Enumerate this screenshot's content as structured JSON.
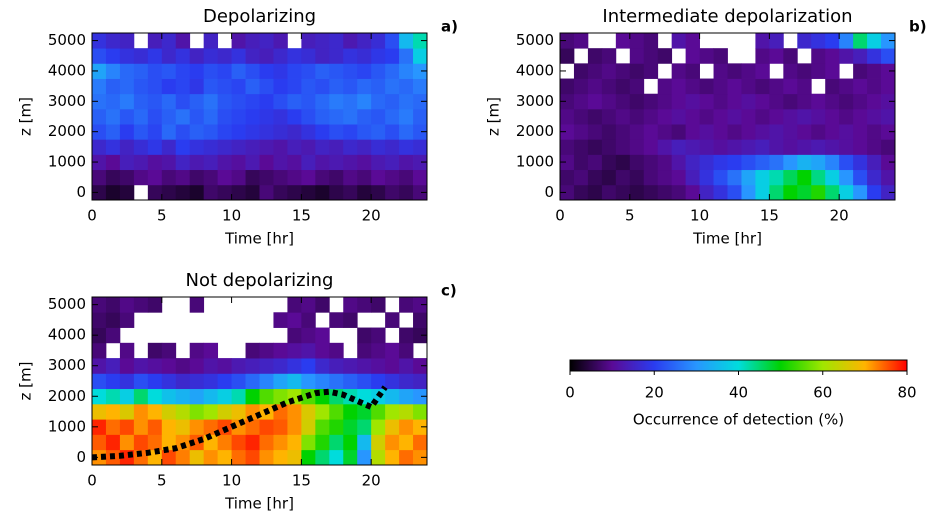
{
  "chart_data": [
    {
      "type": "heatmap",
      "title": "Depolarizing",
      "panel_label": "a)",
      "xlabel": "Time [hr]",
      "ylabel": "z [m]",
      "xlim": [
        0,
        24
      ],
      "ylim": [
        -250,
        5250
      ],
      "xticks": [
        0,
        5,
        10,
        15,
        20
      ],
      "yticks": [
        0,
        1000,
        2000,
        3000,
        4000,
        5000
      ],
      "x_bins": [
        0,
        1,
        2,
        3,
        4,
        5,
        6,
        7,
        8,
        9,
        10,
        11,
        12,
        13,
        14,
        15,
        16,
        17,
        18,
        19,
        20,
        21,
        22,
        23,
        24
      ],
      "y_bins": [
        -250,
        250,
        750,
        1250,
        1750,
        2250,
        2750,
        3250,
        3750,
        4250,
        4750,
        5250
      ],
      "z": [
        [
          5,
          3,
          4,
          null,
          6,
          5,
          4,
          3,
          7,
          6,
          5,
          4,
          8,
          6,
          5,
          4,
          3,
          5,
          6,
          4,
          5,
          7,
          6,
          8
        ],
        [
          8,
          6,
          7,
          9,
          10,
          8,
          9,
          7,
          8,
          10,
          9,
          6,
          7,
          8,
          9,
          10,
          8,
          7,
          9,
          8,
          10,
          9,
          8,
          10
        ],
        [
          12,
          10,
          14,
          13,
          11,
          12,
          15,
          13,
          14,
          12,
          11,
          13,
          10,
          12,
          11,
          14,
          12,
          13,
          12,
          11,
          13,
          14,
          12,
          13
        ],
        [
          16,
          18,
          15,
          17,
          19,
          16,
          20,
          18,
          17,
          16,
          15,
          14,
          13,
          12,
          14,
          13,
          15,
          14,
          16,
          15,
          17,
          16,
          18,
          17
        ],
        [
          22,
          24,
          20,
          23,
          21,
          25,
          22,
          24,
          23,
          21,
          20,
          19,
          18,
          17,
          16,
          18,
          20,
          22,
          21,
          23,
          24,
          22,
          25,
          23
        ],
        [
          24,
          26,
          23,
          25,
          22,
          24,
          26,
          23,
          25,
          22,
          21,
          20,
          19,
          18,
          20,
          22,
          24,
          25,
          26,
          24,
          23,
          25,
          27,
          24
        ],
        [
          26,
          25,
          27,
          24,
          23,
          25,
          22,
          24,
          26,
          23,
          22,
          21,
          20,
          22,
          24,
          23,
          25,
          27,
          26,
          28,
          25,
          24,
          26,
          25
        ],
        [
          27,
          24,
          25,
          23,
          22,
          20,
          21,
          19,
          23,
          22,
          21,
          24,
          22,
          20,
          21,
          23,
          22,
          24,
          23,
          25,
          24,
          26,
          25,
          27
        ],
        [
          32,
          28,
          25,
          24,
          22,
          23,
          21,
          20,
          22,
          21,
          24,
          22,
          20,
          19,
          21,
          22,
          24,
          23,
          22,
          21,
          23,
          25,
          28,
          30
        ],
        [
          22,
          20,
          18,
          17,
          19,
          16,
          18,
          15,
          17,
          16,
          18,
          15,
          14,
          16,
          18,
          17,
          15,
          16,
          18,
          17,
          19,
          20,
          26,
          38
        ],
        [
          18,
          16,
          15,
          null,
          14,
          16,
          12,
          null,
          15,
          null,
          12,
          14,
          15,
          13,
          null,
          14,
          15,
          16,
          13,
          15,
          17,
          22,
          35,
          42
        ]
      ]
    },
    {
      "type": "heatmap",
      "title": "Intermediate depolarization",
      "panel_label": "b)",
      "xlabel": "Time [hr]",
      "ylabel": "z [m]",
      "xlim": [
        0,
        24
      ],
      "ylim": [
        -250,
        5250
      ],
      "xticks": [
        0,
        5,
        10,
        15,
        20
      ],
      "yticks": [
        0,
        1000,
        2000,
        3000,
        4000,
        5000
      ],
      "x_bins": [
        0,
        1,
        2,
        3,
        4,
        5,
        6,
        7,
        8,
        9,
        10,
        11,
        12,
        13,
        14,
        15,
        16,
        17,
        18,
        19,
        20,
        21,
        22,
        23,
        24
      ],
      "y_bins": [
        -250,
        250,
        750,
        1250,
        1750,
        2250,
        2750,
        3250,
        3750,
        4250,
        4750,
        5250
      ],
      "z": [
        [
          8,
          6,
          5,
          7,
          6,
          5,
          6,
          7,
          8,
          10,
          15,
          18,
          22,
          30,
          38,
          45,
          50,
          48,
          52,
          45,
          38,
          30,
          20,
          15
        ],
        [
          7,
          8,
          6,
          5,
          7,
          6,
          8,
          9,
          10,
          14,
          18,
          22,
          26,
          32,
          38,
          42,
          46,
          50,
          44,
          38,
          30,
          22,
          16,
          12
        ],
        [
          9,
          7,
          8,
          6,
          5,
          7,
          8,
          9,
          12,
          15,
          17,
          19,
          20,
          22,
          24,
          26,
          30,
          34,
          32,
          28,
          22,
          18,
          14,
          10
        ],
        [
          8,
          7,
          6,
          7,
          8,
          9,
          10,
          12,
          14,
          13,
          12,
          11,
          12,
          13,
          14,
          12,
          11,
          12,
          13,
          12,
          11,
          10,
          9,
          8
        ],
        [
          10,
          9,
          8,
          7,
          8,
          9,
          10,
          9,
          8,
          10,
          11,
          10,
          9,
          10,
          11,
          12,
          11,
          10,
          9,
          10,
          11,
          10,
          9,
          10
        ],
        [
          9,
          8,
          7,
          8,
          9,
          8,
          9,
          10,
          11,
          10,
          9,
          10,
          11,
          10,
          9,
          10,
          11,
          12,
          11,
          10,
          9,
          10,
          11,
          12
        ],
        [
          8,
          9,
          10,
          9,
          8,
          7,
          8,
          9,
          10,
          11,
          10,
          9,
          10,
          11,
          10,
          9,
          8,
          9,
          10,
          9,
          8,
          9,
          10,
          11
        ],
        [
          7,
          8,
          9,
          8,
          7,
          8,
          null,
          9,
          10,
          9,
          8,
          9,
          10,
          9,
          8,
          9,
          10,
          9,
          null,
          8,
          9,
          10,
          9,
          10
        ],
        [
          null,
          7,
          8,
          9,
          8,
          7,
          8,
          null,
          9,
          8,
          null,
          9,
          8,
          9,
          10,
          null,
          9,
          8,
          9,
          10,
          null,
          8,
          9,
          10
        ],
        [
          6,
          null,
          7,
          8,
          null,
          9,
          8,
          7,
          null,
          10,
          9,
          8,
          null,
          null,
          9,
          10,
          8,
          null,
          9,
          10,
          12,
          14,
          18,
          22
        ],
        [
          8,
          9,
          null,
          null,
          10,
          9,
          8,
          null,
          12,
          10,
          null,
          null,
          null,
          null,
          12,
          14,
          null,
          16,
          18,
          20,
          28,
          45,
          38,
          30
        ]
      ]
    },
    {
      "type": "heatmap",
      "title": "Not depolarizing",
      "panel_label": "c)",
      "xlabel": "Time [hr]",
      "ylabel": "z [m]",
      "xlim": [
        0,
        24
      ],
      "ylim": [
        -250,
        5250
      ],
      "xticks": [
        0,
        5,
        10,
        15,
        20
      ],
      "yticks": [
        0,
        1000,
        2000,
        3000,
        4000,
        5000
      ],
      "x_bins": [
        0,
        1,
        2,
        3,
        4,
        5,
        6,
        7,
        8,
        9,
        10,
        11,
        12,
        13,
        14,
        15,
        16,
        17,
        18,
        19,
        20,
        21,
        22,
        23,
        24
      ],
      "y_bins": [
        -250,
        250,
        750,
        1250,
        1750,
        2250,
        2750,
        3250,
        3750,
        4250,
        4750,
        5250
      ],
      "z": [
        [
          72,
          75,
          78,
          74,
          70,
          76,
          73,
          68,
          72,
          70,
          74,
          76,
          72,
          70,
          68,
          50,
          45,
          40,
          48,
          30,
          62,
          70,
          74,
          72
        ],
        [
          75,
          78,
          72,
          76,
          74,
          70,
          72,
          75,
          70,
          73,
          76,
          78,
          74,
          72,
          70,
          58,
          52,
          45,
          50,
          35,
          65,
          72,
          70,
          74
        ],
        [
          78,
          74,
          76,
          72,
          75,
          70,
          68,
          72,
          74,
          76,
          72,
          74,
          76,
          75,
          72,
          65,
          55,
          52,
          48,
          45,
          60,
          68,
          72,
          70
        ],
        [
          68,
          70,
          66,
          72,
          70,
          65,
          62,
          58,
          60,
          65,
          68,
          72,
          70,
          74,
          72,
          66,
          60,
          55,
          50,
          48,
          55,
          60,
          62,
          58
        ],
        [
          40,
          42,
          38,
          45,
          40,
          36,
          34,
          32,
          35,
          38,
          42,
          50,
          55,
          58,
          60,
          55,
          50,
          45,
          42,
          40,
          38,
          35,
          32,
          30
        ],
        [
          22,
          20,
          18,
          22,
          20,
          18,
          16,
          17,
          18,
          20,
          22,
          25,
          28,
          32,
          35,
          30,
          28,
          26,
          24,
          22,
          20,
          18,
          16,
          15
        ],
        [
          12,
          14,
          10,
          12,
          11,
          10,
          9,
          10,
          12,
          11,
          13,
          14,
          15,
          16,
          18,
          20,
          16,
          14,
          13,
          12,
          11,
          10,
          12,
          10
        ],
        [
          8,
          null,
          9,
          null,
          7,
          8,
          null,
          9,
          10,
          null,
          null,
          8,
          9,
          10,
          11,
          12,
          10,
          9,
          null,
          8,
          9,
          10,
          8,
          null
        ],
        [
          6,
          8,
          null,
          null,
          null,
          null,
          null,
          null,
          null,
          null,
          null,
          null,
          null,
          null,
          8,
          9,
          10,
          null,
          null,
          7,
          8,
          null,
          7,
          6
        ],
        [
          7,
          6,
          8,
          null,
          null,
          null,
          null,
          null,
          null,
          null,
          null,
          null,
          null,
          9,
          10,
          8,
          null,
          8,
          7,
          null,
          null,
          8,
          null,
          7
        ],
        [
          8,
          7,
          9,
          8,
          7,
          null,
          null,
          8,
          null,
          null,
          null,
          null,
          null,
          null,
          8,
          9,
          7,
          null,
          9,
          8,
          7,
          null,
          8,
          9
        ]
      ],
      "overlay": {
        "color": "#000000",
        "x": [
          0,
          2,
          4,
          6,
          8,
          10,
          12,
          14,
          16,
          17,
          18,
          19,
          20,
          21
        ],
        "y": [
          0,
          50,
          150,
          300,
          600,
          1000,
          1400,
          1800,
          2100,
          2150,
          2050,
          1850,
          1650,
          2300
        ]
      }
    }
  ],
  "colorbar": {
    "label": "Occurrence of detection (%)",
    "clim": [
      0,
      80
    ],
    "ticks": [
      0,
      20,
      40,
      60,
      80
    ],
    "colors": [
      "#000000",
      "#5a0a96",
      "#2a3cf0",
      "#2896ff",
      "#00dcdc",
      "#00d200",
      "#a0e600",
      "#ffb400",
      "#ff0000"
    ]
  }
}
